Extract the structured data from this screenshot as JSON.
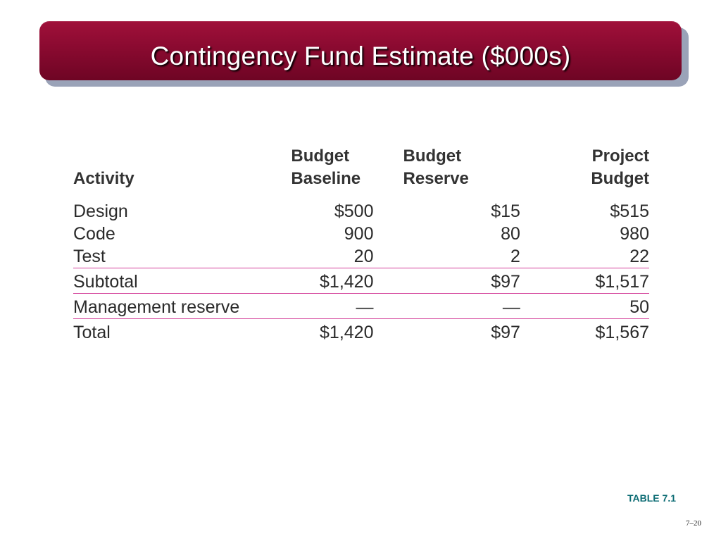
{
  "slide": {
    "title": "Contingency Fund Estimate ($000s)",
    "table_label": "TABLE 7.1",
    "page_number": "7–20"
  },
  "table": {
    "headers": {
      "activity": "Activity",
      "baseline_line1": "Budget",
      "baseline_line2": "Baseline",
      "reserve_line1": "Budget",
      "reserve_line2": "Reserve",
      "project_line1": "Project",
      "project_line2": "Budget"
    },
    "rows": [
      {
        "activity": "Design",
        "baseline": "$500",
        "reserve": "$15",
        "project": "$515"
      },
      {
        "activity": "Code",
        "baseline": "900",
        "reserve": "80",
        "project": "980"
      },
      {
        "activity": "Test",
        "baseline": "20",
        "reserve": "2",
        "project": "22"
      },
      {
        "activity": "Subtotal",
        "baseline": "$1,420",
        "reserve": "$97",
        "project": "$1,517"
      },
      {
        "activity": "Management reserve",
        "baseline": "—",
        "reserve": "—",
        "project": "50"
      },
      {
        "activity": "Total",
        "baseline": "$1,420",
        "reserve": "$97",
        "project": "$1,567"
      }
    ]
  },
  "colors": {
    "title_bar": "#8a0a30",
    "separator": "#d4409a",
    "label": "#0b6b73"
  }
}
